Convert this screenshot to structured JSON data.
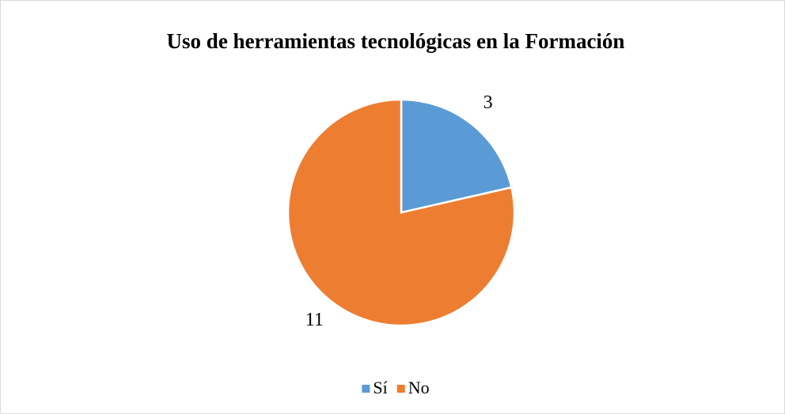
{
  "chart_data": {
    "type": "pie",
    "title": "Uso de herramientas tecnológicas en la Formación",
    "categories": [
      "Sí",
      "No"
    ],
    "values": [
      3,
      11
    ],
    "colors": [
      "#5b9bd5",
      "#ed7d31"
    ],
    "legend": "bottom"
  }
}
